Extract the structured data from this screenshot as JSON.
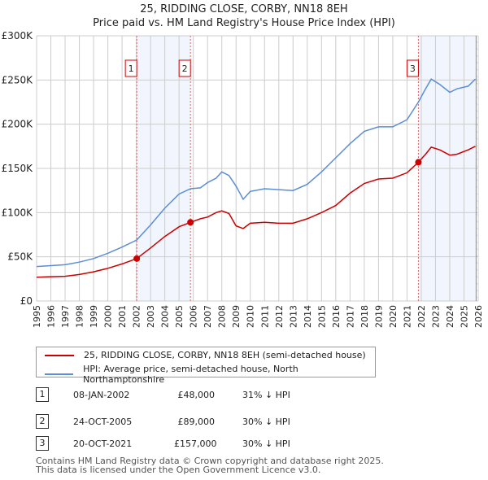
{
  "chart_data": {
    "type": "line",
    "title": "25, RIDDING CLOSE, CORBY, NN18 8EH",
    "subtitle": "Price paid vs. HM Land Registry's House Price Index (HPI)",
    "xlim": [
      1995,
      2026
    ],
    "ylim": [
      0,
      300000
    ],
    "x_ticks": [
      "1995",
      "1996",
      "1997",
      "1998",
      "1999",
      "2000",
      "2001",
      "2002",
      "2003",
      "2004",
      "2005",
      "2006",
      "2007",
      "2008",
      "2009",
      "2010",
      "2011",
      "2012",
      "2013",
      "2014",
      "2015",
      "2016",
      "2017",
      "2018",
      "2019",
      "2020",
      "2021",
      "2022",
      "2023",
      "2024",
      "2025",
      "2026"
    ],
    "y_ticks": [
      {
        "v": 0,
        "label": "£0"
      },
      {
        "v": 50000,
        "label": "£50K"
      },
      {
        "v": 100000,
        "label": "£100K"
      },
      {
        "v": 150000,
        "label": "£150K"
      },
      {
        "v": 200000,
        "label": "£200K"
      },
      {
        "v": 250000,
        "label": "£250K"
      },
      {
        "v": 300000,
        "label": "£300K"
      }
    ],
    "grid": true,
    "series": [
      {
        "name": "25, RIDDING CLOSE, CORBY, NN18 8EH (semi-detached house)",
        "color": "#cc0000",
        "x": [
          1995,
          1996,
          1997,
          1998,
          1999,
          2000,
          2001,
          2002.03,
          2003,
          2004,
          2005,
          2005.8,
          2006.5,
          2007,
          2007.6,
          2008,
          2008.5,
          2009,
          2009.5,
          2010,
          2011,
          2012,
          2013,
          2014,
          2015,
          2016,
          2017,
          2018,
          2019,
          2020,
          2021,
          2021.8,
          2022.3,
          2022.7,
          2023.3,
          2024,
          2024.5,
          2025.3,
          2025.8
        ],
        "y": [
          27000,
          27500,
          28000,
          30000,
          33000,
          37000,
          42000,
          48000,
          60000,
          73000,
          84000,
          89000,
          93000,
          95000,
          100000,
          102000,
          99000,
          85000,
          82000,
          88000,
          89000,
          88000,
          88000,
          93000,
          100000,
          108000,
          122000,
          133000,
          138000,
          139000,
          145000,
          157000,
          166000,
          174000,
          171000,
          165000,
          166000,
          171000,
          175000
        ]
      },
      {
        "name": "HPI: Average price, semi-detached house, North Northamptonshire",
        "color": "#5b8ed6",
        "x": [
          1995,
          1996,
          1997,
          1998,
          1999,
          2000,
          2001,
          2002.03,
          2003,
          2004,
          2005,
          2005.8,
          2006.5,
          2007,
          2007.6,
          2008,
          2008.5,
          2009,
          2009.5,
          2010,
          2011,
          2012,
          2013,
          2014,
          2015,
          2016,
          2017,
          2018,
          2019,
          2020,
          2021,
          2021.8,
          2022.3,
          2022.7,
          2023.3,
          2024,
          2024.5,
          2025.3,
          2025.8
        ],
        "y": [
          39000,
          40000,
          41000,
          44000,
          48000,
          54000,
          61000,
          69000,
          86000,
          105000,
          121000,
          127000,
          128000,
          134000,
          139000,
          146000,
          142000,
          130000,
          115000,
          124000,
          127000,
          126000,
          125000,
          132000,
          146000,
          162000,
          178000,
          192000,
          197000,
          197000,
          205000,
          225000,
          240000,
          251000,
          245000,
          236000,
          240000,
          243000,
          251000
        ]
      }
    ],
    "sales": [
      {
        "label": "1",
        "date": "08-JAN-2002",
        "price": "£48,000",
        "hpi": "31% ↓ HPI",
        "x": 2002.03,
        "y": 48000
      },
      {
        "label": "2",
        "date": "24-OCT-2005",
        "price": "£89,000",
        "hpi": "30% ↓ HPI",
        "x": 2005.8,
        "y": 89000
      },
      {
        "label": "3",
        "date": "20-OCT-2021",
        "price": "£157,000",
        "hpi": "30% ↓ HPI",
        "x": 2021.8,
        "y": 157000
      }
    ],
    "data_end": 2025.85
  },
  "footer": [
    "Contains HM Land Registry data © Crown copyright and database right 2025.",
    "This data is licensed under the Open Government Licence v3.0."
  ]
}
